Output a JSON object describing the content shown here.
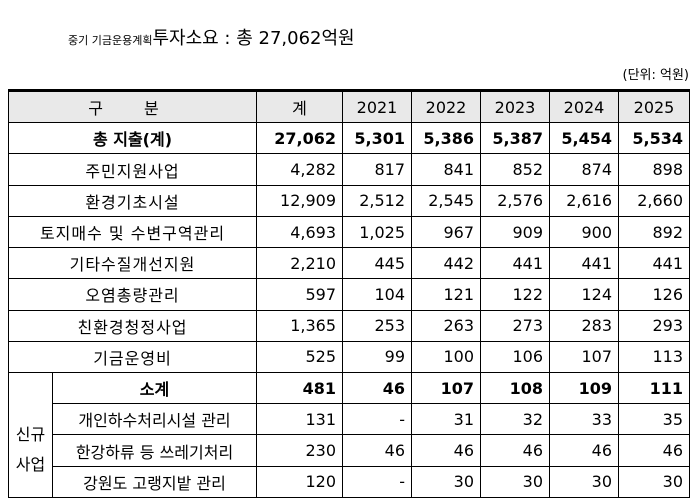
{
  "title": {
    "prefix": "중기 기금운용계획",
    "main": "투자소요 : 총 27,062억원"
  },
  "unit": "(단위: 억원)",
  "table": {
    "headers": [
      "구 분",
      "계",
      "2021",
      "2022",
      "2023",
      "2024",
      "2025"
    ],
    "total": {
      "label": "총 지출(계)",
      "values": [
        "27,062",
        "5,301",
        "5,386",
        "5,387",
        "5,454",
        "5,534"
      ]
    },
    "rows": [
      {
        "label": "주민지원사업",
        "values": [
          "4,282",
          "817",
          "841",
          "852",
          "874",
          "898"
        ]
      },
      {
        "label": "환경기초시설",
        "values": [
          "12,909",
          "2,512",
          "2,545",
          "2,576",
          "2,616",
          "2,660"
        ]
      },
      {
        "label": "토지매수 및 수변구역관리",
        "values": [
          "4,693",
          "1,025",
          "967",
          "909",
          "900",
          "892"
        ]
      },
      {
        "label": "기타수질개선지원",
        "values": [
          "2,210",
          "445",
          "442",
          "441",
          "441",
          "441"
        ]
      },
      {
        "label": "오염총량관리",
        "values": [
          "597",
          "104",
          "121",
          "122",
          "124",
          "126"
        ]
      },
      {
        "label": "친환경청정사업",
        "values": [
          "1,365",
          "253",
          "263",
          "273",
          "283",
          "293"
        ]
      },
      {
        "label": "기금운영비",
        "values": [
          "525",
          "99",
          "100",
          "106",
          "107",
          "113"
        ]
      }
    ],
    "new_group": {
      "label_line1": "신규",
      "label_line2": "사업",
      "subtotal": {
        "label": "소계",
        "values": [
          "481",
          "46",
          "107",
          "108",
          "109",
          "111"
        ]
      },
      "rows": [
        {
          "label": "개인하수처리시설 관리",
          "values": [
            "131",
            "-",
            "31",
            "32",
            "33",
            "35"
          ]
        },
        {
          "label": "한강하류 등 쓰레기처리",
          "values": [
            "230",
            "46",
            "46",
            "46",
            "46",
            "46"
          ]
        },
        {
          "label": "강원도 고랭지밭 관리",
          "values": [
            "120",
            "-",
            "30",
            "30",
            "30",
            "30"
          ]
        }
      ]
    }
  }
}
